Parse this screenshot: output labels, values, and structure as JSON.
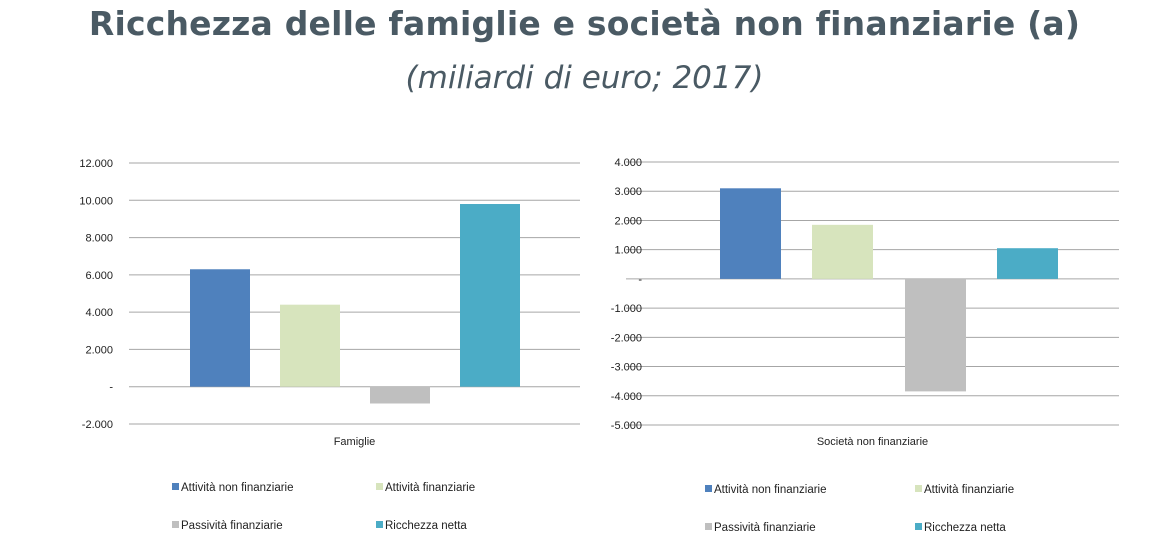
{
  "title": "Ricchezza delle famiglie e società non finanziarie (a)",
  "subtitle": "(miliardi di euro; 2017)",
  "chart_data": [
    {
      "type": "bar",
      "category": "Famiglie",
      "ylim": [
        -2000,
        12000
      ],
      "yticks": [
        -2000,
        0,
        2000,
        4000,
        6000,
        8000,
        10000,
        12000
      ],
      "ytick_labels": [
        "-2.000",
        "-",
        "2.000",
        "4.000",
        "6.000",
        "8.000",
        "10.000",
        "12.000"
      ],
      "grid": true,
      "legend_position": "bottom",
      "series": [
        {
          "name": "Attività non finanziarie",
          "values": [
            6300
          ],
          "color": "#4f81bd"
        },
        {
          "name": "Attività finanziarie",
          "values": [
            4400
          ],
          "color": "#d7e4bd"
        },
        {
          "name": "Passività finanziarie",
          "values": [
            -900
          ],
          "color": "#bfbfbf"
        },
        {
          "name": "Ricchezza netta",
          "values": [
            9800
          ],
          "color": "#4bacc6"
        }
      ]
    },
    {
      "type": "bar",
      "category": "Società non finanziarie",
      "ylim": [
        -5000,
        4000
      ],
      "yticks": [
        -5000,
        -4000,
        -3000,
        -2000,
        -1000,
        0,
        1000,
        2000,
        3000,
        4000
      ],
      "ytick_labels": [
        "-5.000",
        "-4.000",
        "-3.000",
        "-2.000",
        "-1.000",
        "-",
        "1.000",
        "2.000",
        "3.000",
        "4.000"
      ],
      "grid": true,
      "legend_position": "bottom",
      "series": [
        {
          "name": "Attività non finanziarie",
          "values": [
            3100
          ],
          "color": "#4f81bd"
        },
        {
          "name": "Attività finanziarie",
          "values": [
            1850
          ],
          "color": "#d7e4bd"
        },
        {
          "name": "Passività finanziarie",
          "values": [
            -3850
          ],
          "color": "#bfbfbf"
        },
        {
          "name": "Ricchezza netta",
          "values": [
            1050
          ],
          "color": "#4bacc6"
        }
      ]
    }
  ]
}
